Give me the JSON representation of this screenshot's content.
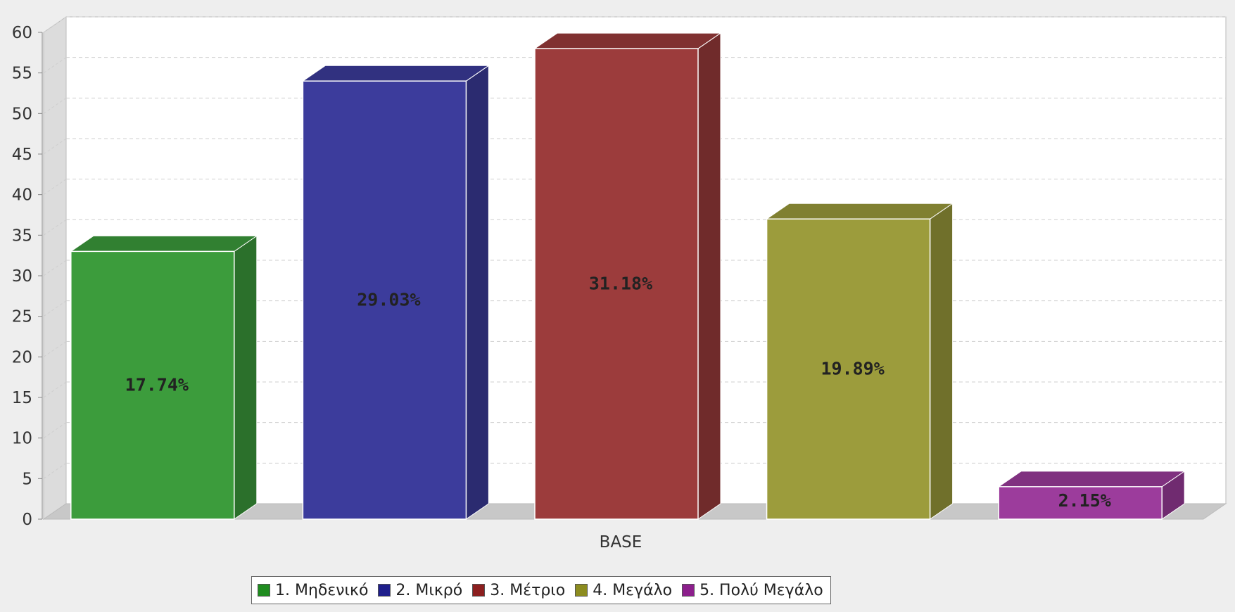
{
  "chart_data": {
    "type": "bar",
    "style": "3d",
    "categories": [
      "BASE"
    ],
    "ylim": [
      0,
      60
    ],
    "yticks": [
      0,
      5,
      10,
      15,
      20,
      25,
      30,
      35,
      40,
      45,
      50,
      55,
      60
    ],
    "grid": true,
    "legend_position": "bottom",
    "series": [
      {
        "name": "1. Μηδενικό",
        "values": [
          33
        ],
        "label": "17.74%",
        "color": "#3c9c3c"
      },
      {
        "name": "2. Μικρό",
        "values": [
          54
        ],
        "label": "29.03%",
        "color": "#3c3c9c"
      },
      {
        "name": "3. Μέτριο",
        "values": [
          58
        ],
        "label": "31.18%",
        "color": "#9c3c3c"
      },
      {
        "name": "4. Μεγάλο",
        "values": [
          37
        ],
        "label": "19.89%",
        "color": "#9c9c3c"
      },
      {
        "name": "5. Πολύ Μεγάλο",
        "values": [
          4
        ],
        "label": "2.15%",
        "color": "#9c3c9c"
      }
    ],
    "legend_colors": [
      "#1f8c1f",
      "#1f1f8c",
      "#8c1f1f",
      "#8c8c1f",
      "#8c1f8c"
    ]
  }
}
